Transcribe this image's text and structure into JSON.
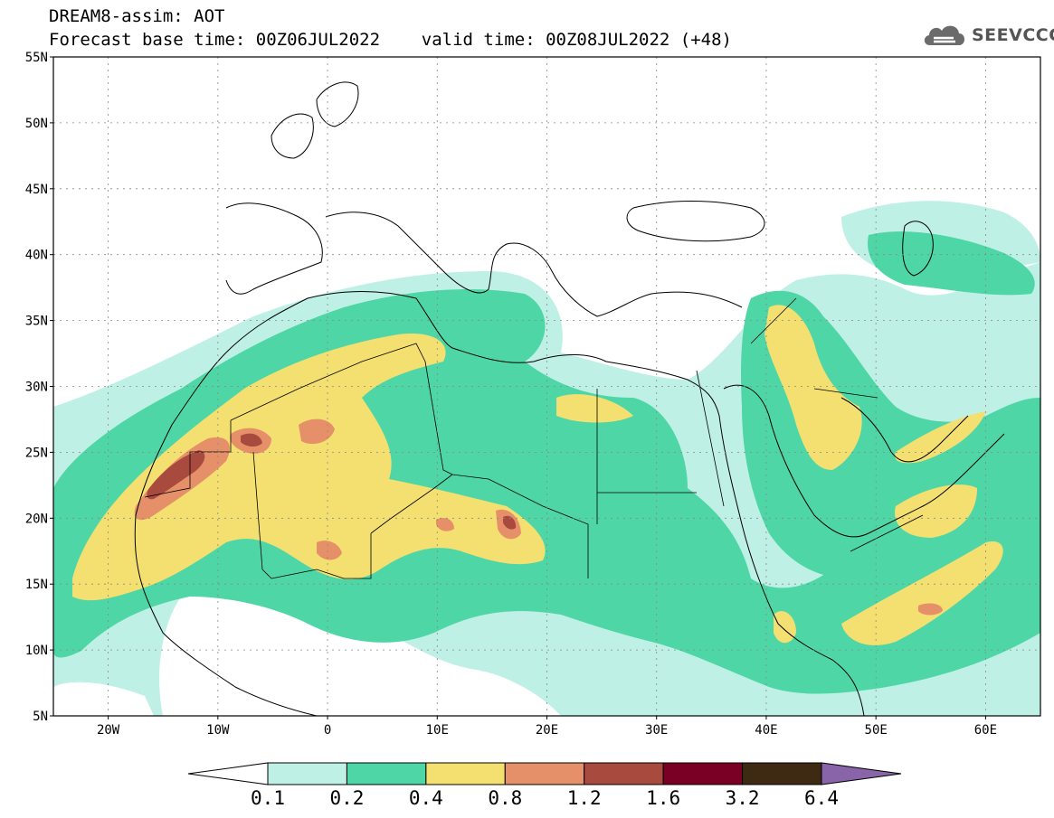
{
  "header": {
    "title_line1": "DREAM8-assim: AOT",
    "title_line2": "Forecast base time: 00Z06JUL2022    valid time: 00Z08JUL2022 (+48)",
    "logo_text": "SEEVCCC",
    "logo_icon": "cloud-icon"
  },
  "map": {
    "lat_labels": [
      "55N",
      "50N",
      "45N",
      "40N",
      "35N",
      "30N",
      "25N",
      "20N",
      "15N",
      "10N",
      "5N"
    ],
    "lon_labels": [
      "20W",
      "10W",
      "0",
      "10E",
      "20E",
      "30E",
      "40E",
      "50E",
      "60E"
    ],
    "lat_range": [
      5,
      55
    ],
    "lon_range": [
      -25,
      65
    ],
    "grid": "dotted"
  },
  "colorbar": {
    "labels": [
      "0.1",
      "0.2",
      "0.4",
      "0.8",
      "1.2",
      "1.6",
      "3.2",
      "6.4"
    ],
    "colors": [
      "#ffffff",
      "#bff0e6",
      "#4fd6a6",
      "#f4e070",
      "#e6906a",
      "#a94a3e",
      "#7a0026",
      "#3e2a12",
      "#8a64a8"
    ]
  }
}
